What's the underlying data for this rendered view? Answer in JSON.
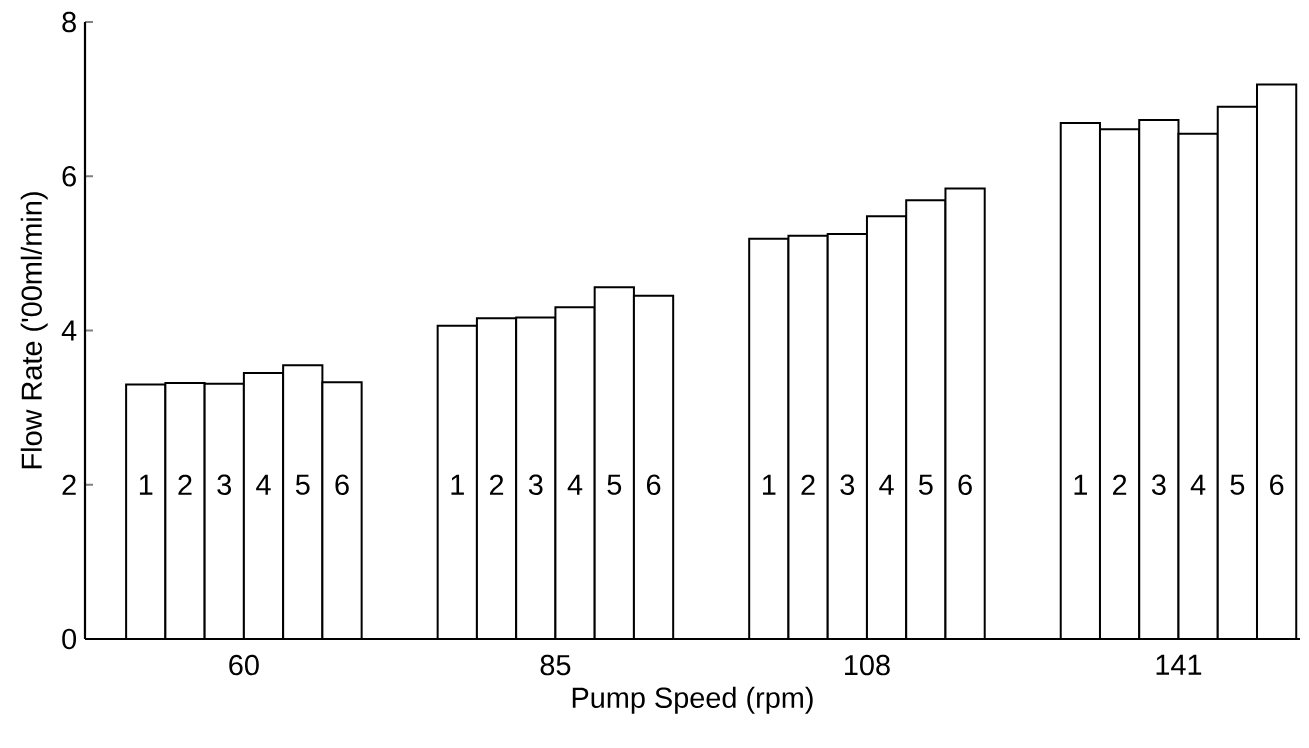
{
  "chart_data": {
    "type": "bar",
    "xlabel": "Pump Speed (rpm)",
    "ylabel": "Flow Rate ('00ml/min)",
    "categories": [
      "60",
      "85",
      "108",
      "141"
    ],
    "ylim": [
      0,
      8
    ],
    "yticks": [
      0,
      2,
      4,
      6,
      8
    ],
    "series": [
      {
        "name": "1",
        "color": "#ffffff",
        "values": [
          3.3,
          4.06,
          5.19,
          6.69
        ]
      },
      {
        "name": "2",
        "color": "#ffffff",
        "values": [
          3.32,
          4.16,
          5.23,
          6.61
        ]
      },
      {
        "name": "3",
        "color": "#ffffff",
        "values": [
          3.31,
          4.17,
          5.25,
          6.73
        ]
      },
      {
        "name": "4",
        "color": "#ffffff",
        "values": [
          3.45,
          4.3,
          5.48,
          6.55
        ]
      },
      {
        "name": "5",
        "color": "#ffffff",
        "values": [
          3.55,
          4.56,
          5.69,
          6.9
        ]
      },
      {
        "name": "6",
        "color": "#ffffff",
        "values": [
          3.33,
          4.45,
          5.84,
          7.19
        ]
      }
    ]
  }
}
